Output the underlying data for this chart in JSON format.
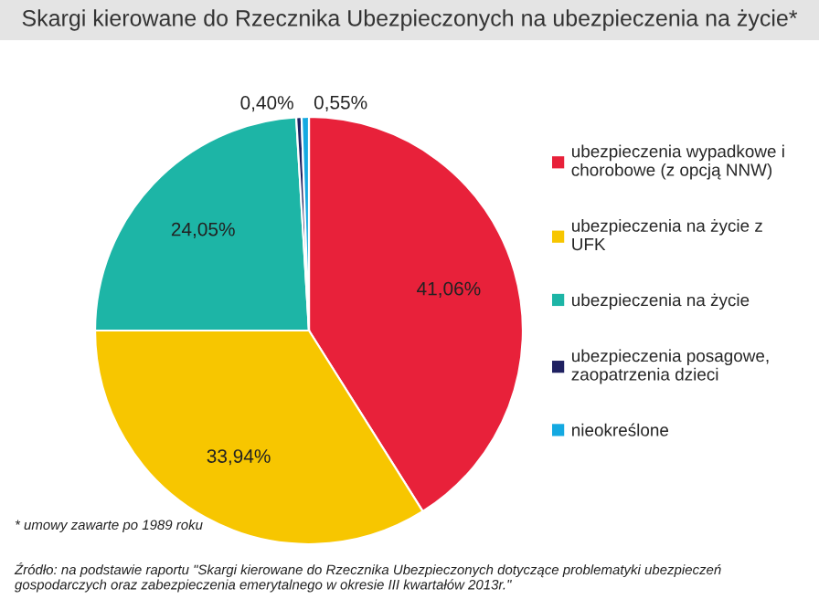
{
  "chart_data": {
    "type": "pie",
    "title": "Skargi kierowane do Rzecznika Ubezpieczonych na ubezpieczenia na życie*",
    "categories": [
      "ubezpieczenia wypadkowe i chorobowe (z opcją NNW)",
      "ubezpieczenia na życie z UFK",
      "ubezpieczenia na życie",
      "ubezpieczenia posagowe, zaopatrzenia dzieci",
      "nieokreślone"
    ],
    "values": [
      41.06,
      33.94,
      24.05,
      0.4,
      0.55
    ],
    "value_labels": [
      "41,06%",
      "33,94%",
      "24,05%",
      "0,40%",
      "0,55%"
    ],
    "colors": [
      "#e8213a",
      "#f7c600",
      "#1db5a6",
      "#1f2161",
      "#14a9e1"
    ],
    "legend": "right",
    "annotations": [
      "* umowy zawarte po 1989 roku",
      "Źródło: na podstawie raportu \"Skargi kierowane do Rzecznika Ubezpieczonych dotyczące problematyki ubezpieczeń gospodarczych oraz zabezpieczenia emerytalnego w okresie III kwartałów 2013r.\""
    ]
  }
}
